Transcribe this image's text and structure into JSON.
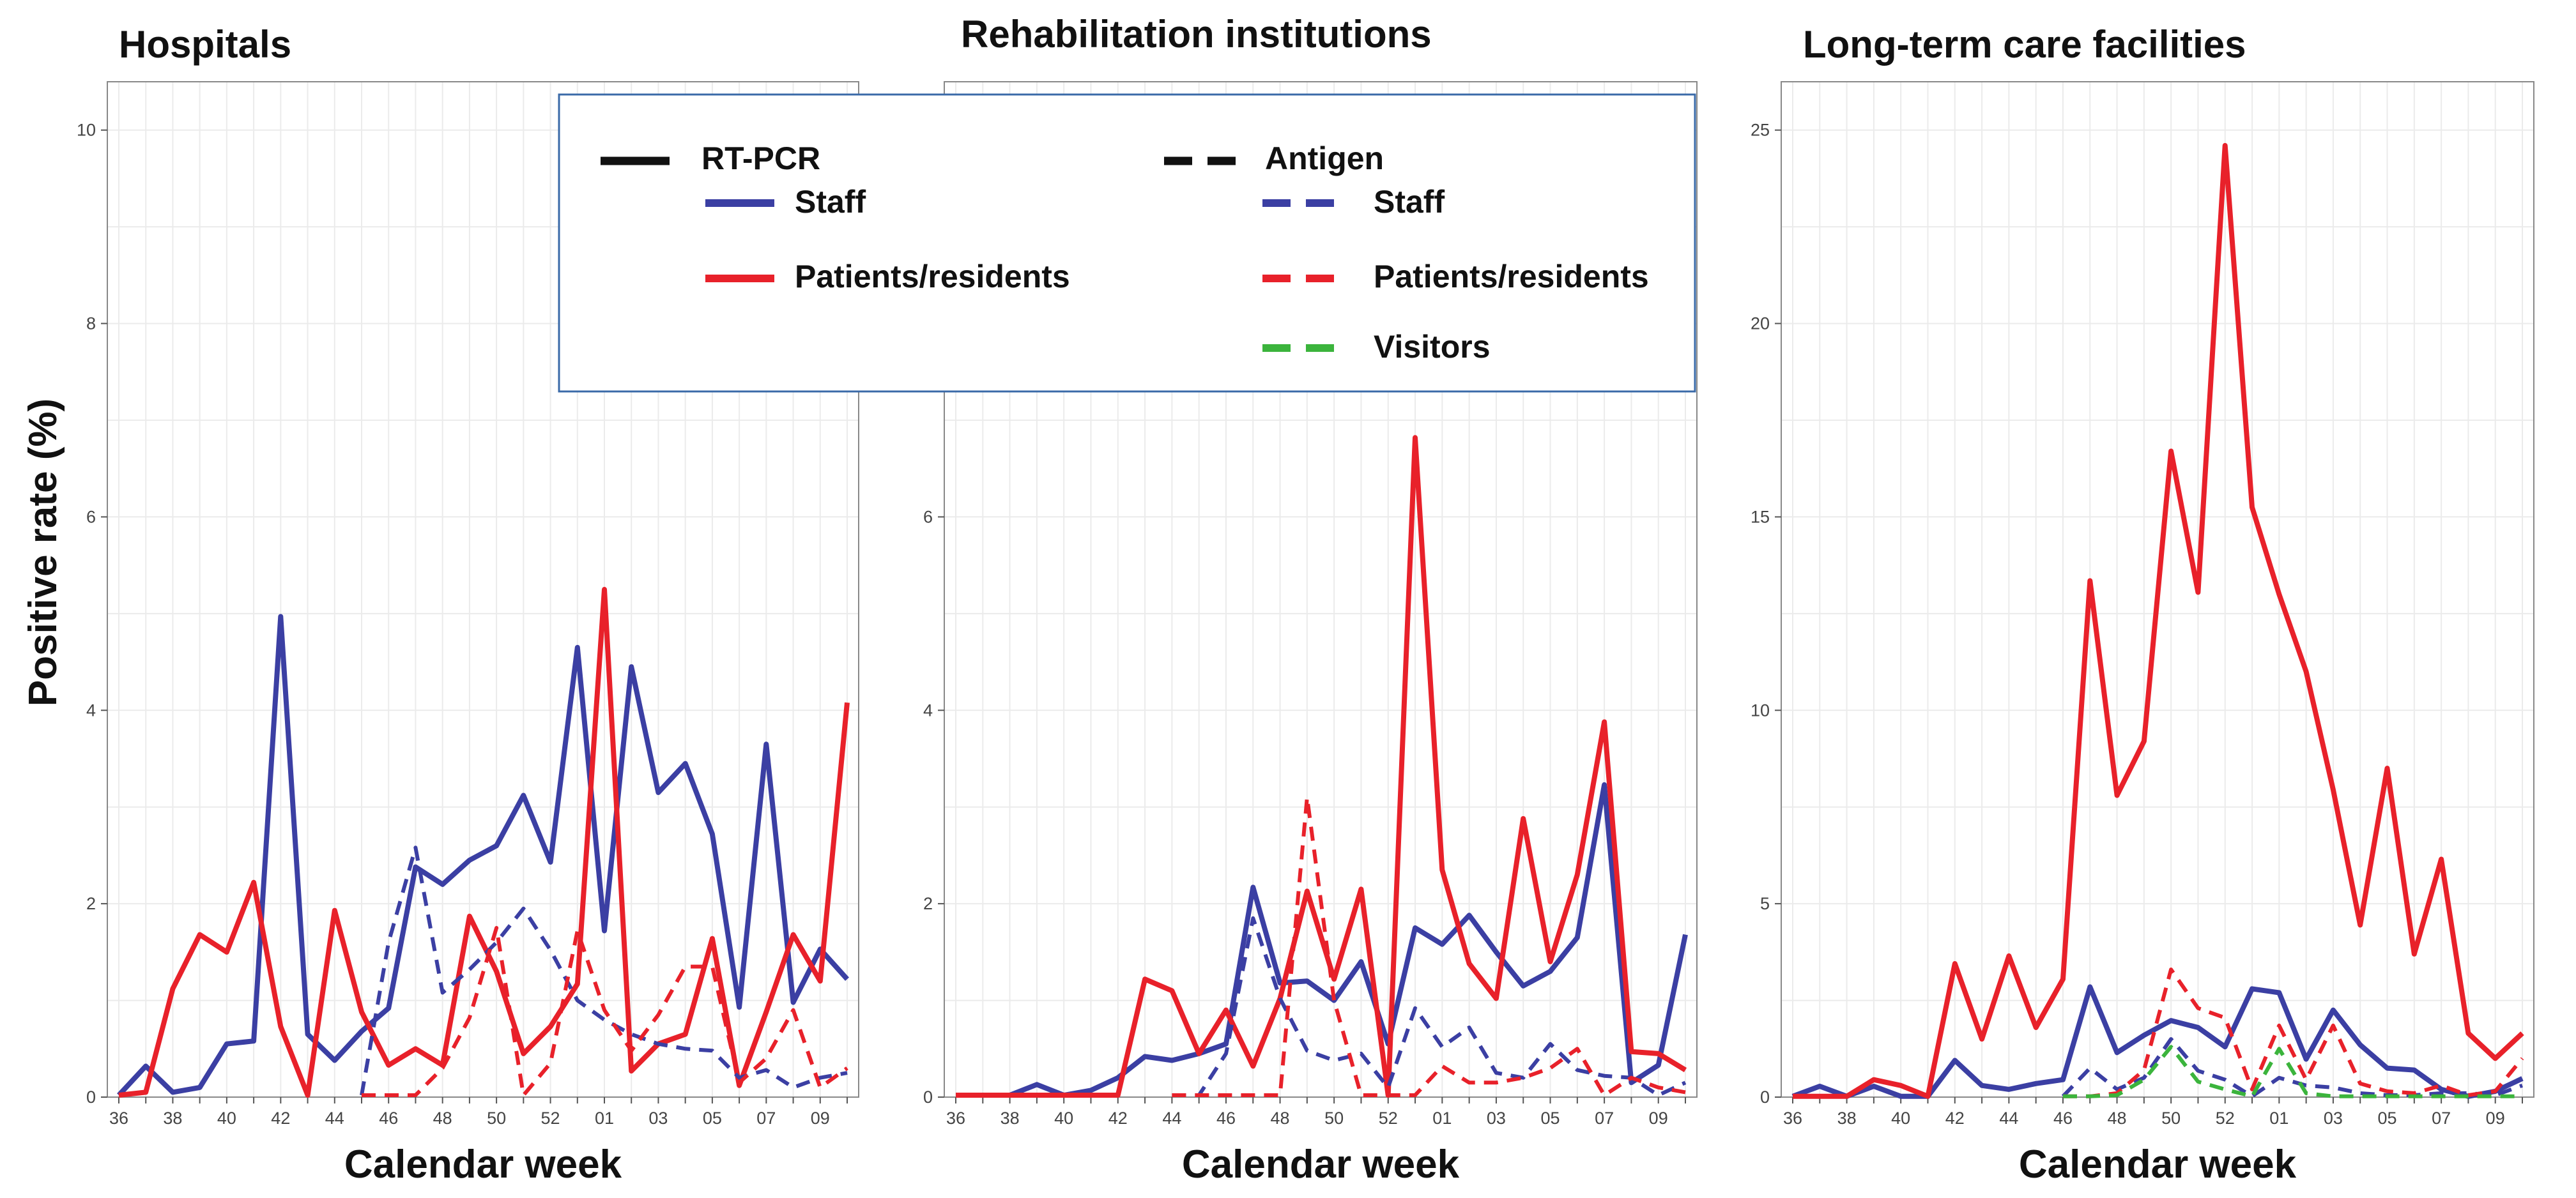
{
  "figure": {
    "ylabel": "Positive rate (%)",
    "colors": {
      "staff": "#3b3fa3",
      "patients": "#e8212a",
      "visitors": "#3bb43c",
      "grid": "#ebebeb",
      "panel_border": "#888888",
      "legend_border": "#3a6aa8"
    }
  },
  "legend": {
    "rtpcr_label": "RT-PCR",
    "antigen_label": "Antigen",
    "staff_label": "Staff",
    "patients_label": "Patients/residents",
    "antigen_staff_label": "Staff",
    "antigen_patients_label": "Patients/residents",
    "visitors_label": "Visitors"
  },
  "chart_data": [
    {
      "type": "line",
      "title": "Hospitals",
      "xlabel": "Calendar week",
      "ylabel": "Positive rate (%)",
      "x": [
        "36",
        "37",
        "38",
        "39",
        "40",
        "41",
        "42",
        "43",
        "44",
        "45",
        "46",
        "47",
        "48",
        "49",
        "50",
        "51",
        "52",
        "53",
        "01",
        "02",
        "03",
        "04",
        "05",
        "06",
        "07",
        "08",
        "09",
        "10"
      ],
      "xtick_labels": [
        "36",
        "38",
        "40",
        "42",
        "44",
        "46",
        "48",
        "50",
        "52",
        "01",
        "03",
        "05",
        "07",
        "09"
      ],
      "ylim": [
        0,
        10.5
      ],
      "yticks": [
        0,
        2,
        4,
        6,
        8,
        10
      ],
      "series": [
        {
          "name": "Staff",
          "test": "RT-PCR",
          "color": "#3b3fa3",
          "dashed": false,
          "values": [
            0.02,
            0.32,
            0.05,
            0.1,
            0.55,
            0.58,
            4.97,
            0.65,
            0.38,
            0.68,
            0.92,
            2.38,
            2.2,
            2.45,
            2.6,
            3.12,
            2.43,
            4.65,
            1.72,
            4.45,
            3.15,
            3.45,
            2.72,
            0.93,
            3.65,
            0.98,
            1.53,
            1.22
          ]
        },
        {
          "name": "Patients/residents",
          "test": "RT-PCR",
          "color": "#e8212a",
          "dashed": false,
          "values": [
            0.02,
            0.05,
            1.12,
            1.68,
            1.5,
            2.22,
            0.73,
            0.02,
            1.93,
            0.88,
            0.33,
            0.5,
            0.33,
            1.87,
            1.3,
            0.45,
            0.73,
            1.17,
            5.25,
            0.27,
            0.55,
            0.65,
            1.64,
            0.12,
            0.88,
            1.68,
            1.2,
            4.08
          ]
        },
        {
          "name": "Staff",
          "test": "Antigen",
          "color": "#3b3fa3",
          "dashed": true,
          "values": [
            null,
            null,
            null,
            null,
            null,
            null,
            null,
            null,
            null,
            0.02,
            1.6,
            2.58,
            1.08,
            1.32,
            1.6,
            1.95,
            1.52,
            1.0,
            0.8,
            0.65,
            0.55,
            0.5,
            0.48,
            0.2,
            0.28,
            0.1,
            0.2,
            0.25
          ]
        },
        {
          "name": "Patients/residents",
          "test": "Antigen",
          "color": "#e8212a",
          "dashed": true,
          "values": [
            null,
            null,
            null,
            null,
            null,
            null,
            null,
            null,
            null,
            0.02,
            0.02,
            0.02,
            0.3,
            0.82,
            1.75,
            0.02,
            0.35,
            1.72,
            0.9,
            0.48,
            0.85,
            1.35,
            1.35,
            0.15,
            0.4,
            0.9,
            0.1,
            0.3
          ]
        }
      ]
    },
    {
      "type": "line",
      "title": "Rehabilitation institutions",
      "xlabel": "Calendar week",
      "ylabel": "",
      "x": [
        "36",
        "37",
        "38",
        "39",
        "40",
        "41",
        "42",
        "43",
        "44",
        "45",
        "46",
        "47",
        "48",
        "49",
        "50",
        "51",
        "52",
        "53",
        "01",
        "02",
        "03",
        "04",
        "05",
        "06",
        "07",
        "08",
        "09",
        "10"
      ],
      "xtick_labels": [
        "36",
        "38",
        "40",
        "42",
        "44",
        "46",
        "48",
        "50",
        "52",
        "01",
        "03",
        "05",
        "07",
        "09"
      ],
      "ylim": [
        0,
        10.5
      ],
      "yticks": [
        0,
        2,
        4,
        6
      ],
      "series": [
        {
          "name": "Staff",
          "test": "RT-PCR",
          "color": "#3b3fa3",
          "dashed": false,
          "values": [
            0.02,
            0.02,
            0.02,
            0.13,
            0.02,
            0.07,
            0.2,
            0.42,
            0.38,
            0.45,
            0.55,
            2.17,
            1.18,
            1.2,
            1.0,
            1.4,
            0.55,
            1.75,
            1.58,
            1.88,
            1.5,
            1.15,
            1.3,
            1.65,
            3.23,
            0.15,
            0.33,
            1.68
          ]
        },
        {
          "name": "Patients/residents",
          "test": "RT-PCR",
          "color": "#e8212a",
          "dashed": false,
          "values": [
            0.02,
            0.02,
            0.02,
            0.02,
            0.02,
            0.02,
            0.02,
            1.22,
            1.1,
            0.45,
            0.9,
            0.32,
            1.02,
            2.13,
            1.22,
            2.15,
            0.02,
            6.82,
            2.35,
            1.38,
            1.02,
            2.88,
            1.4,
            2.3,
            3.88,
            0.47,
            0.45,
            0.28
          ]
        },
        {
          "name": "Staff",
          "test": "Antigen",
          "color": "#3b3fa3",
          "dashed": true,
          "values": [
            null,
            null,
            null,
            null,
            null,
            null,
            null,
            null,
            0.02,
            0.02,
            0.45,
            1.85,
            1.02,
            0.48,
            0.38,
            0.45,
            0.1,
            0.92,
            0.52,
            0.72,
            0.25,
            0.2,
            0.55,
            0.28,
            0.22,
            0.2,
            0.02,
            0.15
          ]
        },
        {
          "name": "Patients/residents",
          "test": "Antigen",
          "color": "#e8212a",
          "dashed": true,
          "values": [
            null,
            null,
            null,
            null,
            null,
            null,
            null,
            null,
            0.02,
            0.02,
            0.02,
            0.02,
            0.02,
            3.1,
            1.0,
            0.02,
            0.02,
            0.02,
            0.32,
            0.15,
            0.15,
            0.2,
            0.3,
            0.5,
            0.02,
            0.2,
            0.1,
            0.05
          ]
        }
      ]
    },
    {
      "type": "line",
      "title": "Long-term care facilities",
      "xlabel": "Calendar week",
      "ylabel": "",
      "x": [
        "36",
        "37",
        "38",
        "39",
        "40",
        "41",
        "42",
        "43",
        "44",
        "45",
        "46",
        "47",
        "48",
        "49",
        "50",
        "51",
        "52",
        "53",
        "01",
        "02",
        "03",
        "04",
        "05",
        "06",
        "07",
        "08",
        "09",
        "10"
      ],
      "xtick_labels": [
        "36",
        "38",
        "40",
        "42",
        "44",
        "46",
        "48",
        "50",
        "52",
        "01",
        "03",
        "05",
        "07",
        "09"
      ],
      "ylim": [
        0,
        26.25
      ],
      "yticks": [
        0,
        5,
        10,
        15,
        20,
        25
      ],
      "series": [
        {
          "name": "Staff",
          "test": "RT-PCR",
          "color": "#3b3fa3",
          "dashed": false,
          "values": [
            0.02,
            0.28,
            0.02,
            0.28,
            0.02,
            0.02,
            0.95,
            0.3,
            0.2,
            0.35,
            0.45,
            2.85,
            1.15,
            1.6,
            1.98,
            1.8,
            1.3,
            2.8,
            2.7,
            0.98,
            2.25,
            1.35,
            0.75,
            0.7,
            0.2,
            0.02,
            0.15,
            0.48
          ]
        },
        {
          "name": "Patients/residents",
          "test": "RT-PCR",
          "color": "#e8212a",
          "dashed": false,
          "values": [
            0.02,
            0.02,
            0.02,
            0.45,
            0.3,
            0.02,
            3.45,
            1.5,
            3.65,
            1.8,
            3.05,
            13.35,
            7.8,
            9.2,
            16.7,
            13.05,
            24.6,
            15.25,
            13.0,
            11.0,
            7.95,
            4.45,
            8.5,
            3.7,
            6.15,
            1.65,
            1.0,
            1.65
          ]
        },
        {
          "name": "Staff",
          "test": "Antigen",
          "color": "#3b3fa3",
          "dashed": true,
          "values": [
            null,
            null,
            null,
            null,
            null,
            null,
            null,
            null,
            null,
            null,
            0.02,
            0.75,
            0.2,
            0.5,
            1.5,
            0.68,
            0.45,
            0.02,
            0.5,
            0.3,
            0.25,
            0.1,
            0.05,
            0.05,
            0.1,
            0.1,
            0.05,
            0.3
          ]
        },
        {
          "name": "Patients/residents",
          "test": "Antigen",
          "color": "#e8212a",
          "dashed": true,
          "values": [
            null,
            null,
            null,
            null,
            null,
            null,
            null,
            null,
            null,
            null,
            0.02,
            0.02,
            0.1,
            0.7,
            3.3,
            2.3,
            2.05,
            0.2,
            1.85,
            0.45,
            1.85,
            0.35,
            0.15,
            0.1,
            0.3,
            0.05,
            0.15,
            1.0
          ]
        },
        {
          "name": "Visitors",
          "test": "Antigen",
          "color": "#3bb43c",
          "dashed": true,
          "values": [
            null,
            null,
            null,
            null,
            null,
            null,
            null,
            null,
            null,
            null,
            0.02,
            0.02,
            0.05,
            0.45,
            1.3,
            0.4,
            0.2,
            0.02,
            1.25,
            0.1,
            0.02,
            0.02,
            0.02,
            0.02,
            0.02,
            0.02,
            0.02,
            0.02
          ]
        }
      ]
    }
  ]
}
